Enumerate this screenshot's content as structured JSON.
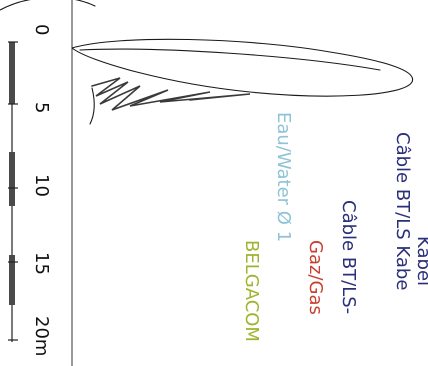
{
  "scale_bar": {
    "ticks": [
      "0",
      "5",
      "10",
      "15",
      "20m"
    ]
  },
  "legend": {
    "lines": [
      {
        "text": "Kabel",
        "color": "#2a2f7a"
      },
      {
        "text": "Câble BT/LS Kabe",
        "color": "#2a2f7a"
      },
      {
        "text": "Eau/Water Ø 1",
        "color": "#8fc3d6"
      },
      {
        "text": "Câble BT/LS-",
        "color": "#2a2f7a"
      },
      {
        "text": "Gaz/Gas",
        "color": "#c8402f"
      },
      {
        "text": "BELGACOM",
        "color": "#9fb42e"
      }
    ]
  }
}
